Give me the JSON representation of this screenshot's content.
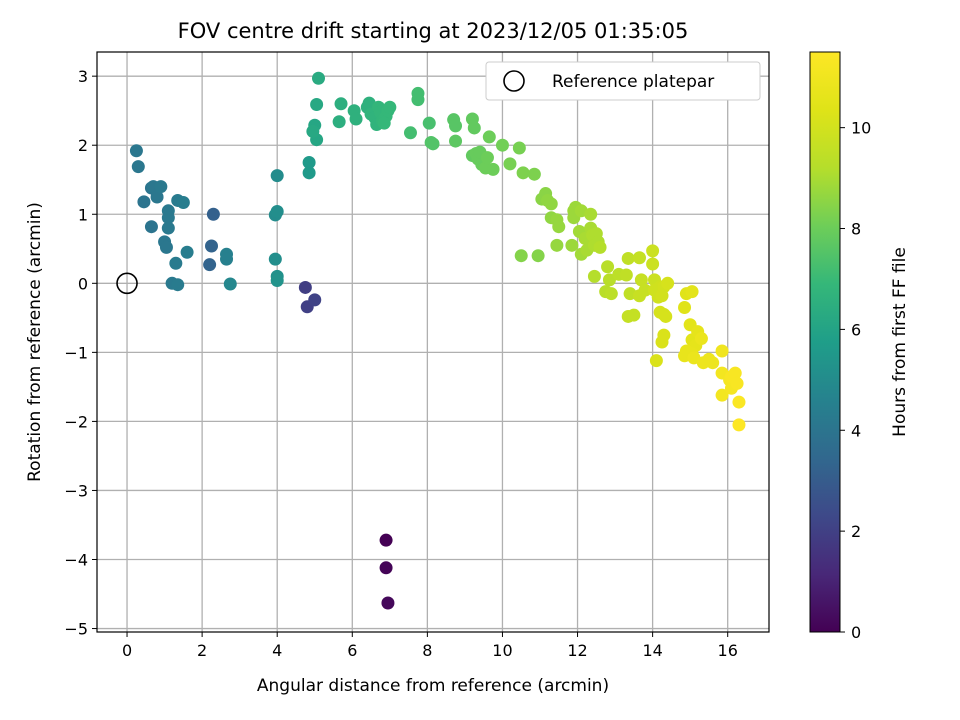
{
  "chart_data": {
    "type": "scatter",
    "title": "FOV centre drift starting at 2023/12/05 01:35:05",
    "xlabel": "Angular distance from reference (arcmin)",
    "ylabel": "Rotation from reference (arcmin)",
    "xlim": [
      -0.8,
      17.1
    ],
    "ylim": [
      -5.05,
      3.35
    ],
    "xticks": [
      0,
      2,
      4,
      6,
      8,
      10,
      12,
      14,
      16
    ],
    "yticks": [
      -5,
      -4,
      -3,
      -2,
      -1,
      0,
      1,
      2,
      3
    ],
    "grid": true,
    "legend": {
      "position": "top-right",
      "entries": [
        "Reference platepar"
      ]
    },
    "colorbar": {
      "label": "Hours from first FF file",
      "range": [
        0,
        11.5
      ],
      "ticks": [
        0,
        2,
        4,
        6,
        8,
        10
      ],
      "colormap": "viridis"
    },
    "reference_point": {
      "x": 0,
      "y": 0
    },
    "points": [
      {
        "x": 6.9,
        "y": -3.72,
        "c": 0.0
      },
      {
        "x": 6.9,
        "y": -4.12,
        "c": 0.1
      },
      {
        "x": 6.95,
        "y": -4.63,
        "c": 0.2
      },
      {
        "x": 4.75,
        "y": -0.06,
        "c": 1.9
      },
      {
        "x": 4.8,
        "y": -0.34,
        "c": 2.0
      },
      {
        "x": 5.0,
        "y": -0.24,
        "c": 2.1
      },
      {
        "x": 2.3,
        "y": 1.0,
        "c": 3.2
      },
      {
        "x": 2.2,
        "y": 0.27,
        "c": 3.3
      },
      {
        "x": 2.25,
        "y": 0.54,
        "c": 3.3
      },
      {
        "x": 0.25,
        "y": 1.92,
        "c": 4.1
      },
      {
        "x": 0.3,
        "y": 1.69,
        "c": 4.1
      },
      {
        "x": 0.45,
        "y": 1.18,
        "c": 4.0
      },
      {
        "x": 0.65,
        "y": 1.38,
        "c": 4.0
      },
      {
        "x": 0.7,
        "y": 1.4,
        "c": 4.1
      },
      {
        "x": 0.8,
        "y": 1.25,
        "c": 4.1
      },
      {
        "x": 0.9,
        "y": 1.4,
        "c": 4.2
      },
      {
        "x": 0.65,
        "y": 0.82,
        "c": 4.0
      },
      {
        "x": 1.0,
        "y": 0.6,
        "c": 4.1
      },
      {
        "x": 1.05,
        "y": 0.52,
        "c": 4.1
      },
      {
        "x": 1.1,
        "y": 1.05,
        "c": 4.2
      },
      {
        "x": 1.1,
        "y": 0.95,
        "c": 4.2
      },
      {
        "x": 1.1,
        "y": 0.8,
        "c": 4.2
      },
      {
        "x": 1.2,
        "y": 0.0,
        "c": 4.2
      },
      {
        "x": 1.35,
        "y": -0.02,
        "c": 4.3
      },
      {
        "x": 1.3,
        "y": 0.29,
        "c": 4.3
      },
      {
        "x": 1.35,
        "y": 1.2,
        "c": 4.3
      },
      {
        "x": 1.5,
        "y": 1.17,
        "c": 4.4
      },
      {
        "x": 1.6,
        "y": 0.45,
        "c": 4.4
      },
      {
        "x": 2.65,
        "y": 0.42,
        "c": 4.5
      },
      {
        "x": 2.65,
        "y": 0.35,
        "c": 4.5
      },
      {
        "x": 2.75,
        "y": -0.01,
        "c": 4.8
      },
      {
        "x": 4.0,
        "y": 1.56,
        "c": 5.0
      },
      {
        "x": 3.95,
        "y": 0.99,
        "c": 5.0
      },
      {
        "x": 4.0,
        "y": 1.04,
        "c": 5.1
      },
      {
        "x": 3.95,
        "y": 0.35,
        "c": 5.1
      },
      {
        "x": 4.0,
        "y": 0.1,
        "c": 5.2
      },
      {
        "x": 4.0,
        "y": 0.04,
        "c": 5.3
      },
      {
        "x": 4.85,
        "y": 1.6,
        "c": 5.6
      },
      {
        "x": 4.85,
        "y": 1.75,
        "c": 5.6
      },
      {
        "x": 5.0,
        "y": 2.29,
        "c": 6.1
      },
      {
        "x": 5.05,
        "y": 2.08,
        "c": 6.1
      },
      {
        "x": 5.05,
        "y": 2.59,
        "c": 6.2
      },
      {
        "x": 5.1,
        "y": 2.97,
        "c": 6.3
      },
      {
        "x": 4.95,
        "y": 2.2,
        "c": 6.2
      },
      {
        "x": 5.65,
        "y": 2.34,
        "c": 6.5
      },
      {
        "x": 5.7,
        "y": 2.6,
        "c": 6.5
      },
      {
        "x": 6.05,
        "y": 2.5,
        "c": 6.6
      },
      {
        "x": 6.1,
        "y": 2.38,
        "c": 6.6
      },
      {
        "x": 6.4,
        "y": 2.55,
        "c": 6.6
      },
      {
        "x": 6.45,
        "y": 2.61,
        "c": 6.6
      },
      {
        "x": 6.5,
        "y": 2.45,
        "c": 6.7
      },
      {
        "x": 6.6,
        "y": 2.4,
        "c": 6.7
      },
      {
        "x": 6.65,
        "y": 2.3,
        "c": 6.7
      },
      {
        "x": 6.7,
        "y": 2.55,
        "c": 6.8
      },
      {
        "x": 6.75,
        "y": 2.48,
        "c": 6.8
      },
      {
        "x": 6.8,
        "y": 2.35,
        "c": 6.8
      },
      {
        "x": 6.9,
        "y": 2.42,
        "c": 6.9
      },
      {
        "x": 6.95,
        "y": 2.5,
        "c": 6.9
      },
      {
        "x": 7.0,
        "y": 2.55,
        "c": 6.9
      },
      {
        "x": 6.85,
        "y": 2.32,
        "c": 6.9
      },
      {
        "x": 7.55,
        "y": 2.18,
        "c": 7.2
      },
      {
        "x": 7.75,
        "y": 2.75,
        "c": 7.2
      },
      {
        "x": 7.75,
        "y": 2.66,
        "c": 7.2
      },
      {
        "x": 8.05,
        "y": 2.32,
        "c": 7.3
      },
      {
        "x": 8.1,
        "y": 2.04,
        "c": 7.5
      },
      {
        "x": 8.15,
        "y": 2.02,
        "c": 7.5
      },
      {
        "x": 8.7,
        "y": 2.37,
        "c": 7.6
      },
      {
        "x": 8.75,
        "y": 2.28,
        "c": 7.6
      },
      {
        "x": 8.75,
        "y": 2.06,
        "c": 7.7
      },
      {
        "x": 9.2,
        "y": 2.38,
        "c": 7.8
      },
      {
        "x": 9.25,
        "y": 2.25,
        "c": 7.8
      },
      {
        "x": 9.2,
        "y": 1.85,
        "c": 7.8
      },
      {
        "x": 9.3,
        "y": 1.88,
        "c": 7.9
      },
      {
        "x": 9.35,
        "y": 1.8,
        "c": 7.9
      },
      {
        "x": 9.4,
        "y": 1.9,
        "c": 7.9
      },
      {
        "x": 9.45,
        "y": 1.72,
        "c": 7.9
      },
      {
        "x": 9.55,
        "y": 1.67,
        "c": 8.0
      },
      {
        "x": 9.6,
        "y": 1.82,
        "c": 8.0
      },
      {
        "x": 9.65,
        "y": 2.12,
        "c": 8.0
      },
      {
        "x": 9.75,
        "y": 1.65,
        "c": 8.0
      },
      {
        "x": 10.0,
        "y": 2.0,
        "c": 8.1
      },
      {
        "x": 10.2,
        "y": 1.73,
        "c": 8.2
      },
      {
        "x": 10.45,
        "y": 1.96,
        "c": 8.2
      },
      {
        "x": 10.55,
        "y": 1.6,
        "c": 8.3
      },
      {
        "x": 10.85,
        "y": 1.58,
        "c": 8.3
      },
      {
        "x": 10.5,
        "y": 0.4,
        "c": 8.4
      },
      {
        "x": 10.95,
        "y": 0.4,
        "c": 8.4
      },
      {
        "x": 11.05,
        "y": 1.22,
        "c": 8.5
      },
      {
        "x": 11.15,
        "y": 1.3,
        "c": 8.5
      },
      {
        "x": 11.2,
        "y": 1.2,
        "c": 8.6
      },
      {
        "x": 11.3,
        "y": 1.15,
        "c": 8.6
      },
      {
        "x": 11.3,
        "y": 0.95,
        "c": 8.6
      },
      {
        "x": 11.45,
        "y": 0.92,
        "c": 8.7
      },
      {
        "x": 11.5,
        "y": 0.82,
        "c": 8.7
      },
      {
        "x": 11.45,
        "y": 0.55,
        "c": 8.7
      },
      {
        "x": 11.9,
        "y": 1.05,
        "c": 8.8
      },
      {
        "x": 11.95,
        "y": 1.1,
        "c": 8.8
      },
      {
        "x": 11.9,
        "y": 0.95,
        "c": 8.8
      },
      {
        "x": 11.85,
        "y": 0.55,
        "c": 8.8
      },
      {
        "x": 12.05,
        "y": 0.75,
        "c": 8.9
      },
      {
        "x": 12.1,
        "y": 1.05,
        "c": 8.9
      },
      {
        "x": 12.1,
        "y": 0.42,
        "c": 8.9
      },
      {
        "x": 12.2,
        "y": 0.65,
        "c": 9.0
      },
      {
        "x": 12.25,
        "y": 0.48,
        "c": 9.0
      },
      {
        "x": 12.35,
        "y": 1.0,
        "c": 9.0
      },
      {
        "x": 12.35,
        "y": 0.8,
        "c": 9.0
      },
      {
        "x": 12.4,
        "y": 0.7,
        "c": 9.1
      },
      {
        "x": 12.45,
        "y": 0.55,
        "c": 9.1
      },
      {
        "x": 12.5,
        "y": 0.72,
        "c": 9.1
      },
      {
        "x": 12.55,
        "y": 0.6,
        "c": 9.1
      },
      {
        "x": 12.6,
        "y": 0.52,
        "c": 9.2
      },
      {
        "x": 12.45,
        "y": 0.1,
        "c": 9.2
      },
      {
        "x": 12.75,
        "y": -0.12,
        "c": 9.3
      },
      {
        "x": 12.8,
        "y": 0.24,
        "c": 9.3
      },
      {
        "x": 12.85,
        "y": 0.05,
        "c": 9.3
      },
      {
        "x": 12.9,
        "y": -0.15,
        "c": 9.4
      },
      {
        "x": 13.1,
        "y": 0.13,
        "c": 9.4
      },
      {
        "x": 13.3,
        "y": 0.12,
        "c": 9.5
      },
      {
        "x": 13.35,
        "y": 0.36,
        "c": 9.5
      },
      {
        "x": 13.4,
        "y": -0.15,
        "c": 9.5
      },
      {
        "x": 13.35,
        "y": -0.48,
        "c": 9.6
      },
      {
        "x": 13.5,
        "y": -0.46,
        "c": 9.6
      },
      {
        "x": 13.65,
        "y": 0.37,
        "c": 9.6
      },
      {
        "x": 13.65,
        "y": -0.18,
        "c": 9.7
      },
      {
        "x": 13.7,
        "y": 0.05,
        "c": 9.7
      },
      {
        "x": 13.8,
        "y": -0.1,
        "c": 9.7
      },
      {
        "x": 14.0,
        "y": 0.47,
        "c": 9.8
      },
      {
        "x": 14.0,
        "y": 0.28,
        "c": 9.8
      },
      {
        "x": 14.05,
        "y": 0.05,
        "c": 9.8
      },
      {
        "x": 14.05,
        "y": -0.1,
        "c": 9.9
      },
      {
        "x": 14.15,
        "y": -0.2,
        "c": 9.9
      },
      {
        "x": 14.2,
        "y": -0.05,
        "c": 9.9
      },
      {
        "x": 14.25,
        "y": -0.18,
        "c": 10.0
      },
      {
        "x": 14.3,
        "y": -0.05,
        "c": 10.0
      },
      {
        "x": 14.3,
        "y": -0.45,
        "c": 10.0
      },
      {
        "x": 14.35,
        "y": -0.48,
        "c": 10.1
      },
      {
        "x": 14.4,
        "y": 0.0,
        "c": 10.1
      },
      {
        "x": 14.2,
        "y": -0.42,
        "c": 10.1
      },
      {
        "x": 14.3,
        "y": -0.75,
        "c": 10.2
      },
      {
        "x": 14.25,
        "y": -0.85,
        "c": 10.2
      },
      {
        "x": 14.1,
        "y": -1.12,
        "c": 10.2
      },
      {
        "x": 14.85,
        "y": -0.35,
        "c": 10.4
      },
      {
        "x": 14.9,
        "y": -0.15,
        "c": 10.4
      },
      {
        "x": 15.05,
        "y": -0.12,
        "c": 10.5
      },
      {
        "x": 15.0,
        "y": -0.6,
        "c": 10.5
      },
      {
        "x": 15.05,
        "y": -0.82,
        "c": 10.5
      },
      {
        "x": 15.15,
        "y": -0.9,
        "c": 10.6
      },
      {
        "x": 15.2,
        "y": -0.7,
        "c": 10.6
      },
      {
        "x": 14.9,
        "y": -0.98,
        "c": 10.7
      },
      {
        "x": 14.85,
        "y": -1.05,
        "c": 10.7
      },
      {
        "x": 15.05,
        "y": -1.02,
        "c": 10.7
      },
      {
        "x": 15.1,
        "y": -1.08,
        "c": 10.8
      },
      {
        "x": 15.3,
        "y": -0.8,
        "c": 10.8
      },
      {
        "x": 15.35,
        "y": -1.15,
        "c": 10.9
      },
      {
        "x": 15.5,
        "y": -1.1,
        "c": 10.9
      },
      {
        "x": 15.6,
        "y": -1.15,
        "c": 10.9
      },
      {
        "x": 15.85,
        "y": -0.98,
        "c": 11.0
      },
      {
        "x": 15.85,
        "y": -1.3,
        "c": 11.1
      },
      {
        "x": 15.85,
        "y": -1.62,
        "c": 11.1
      },
      {
        "x": 16.05,
        "y": -1.4,
        "c": 11.2
      },
      {
        "x": 16.1,
        "y": -1.52,
        "c": 11.2
      },
      {
        "x": 16.1,
        "y": -1.35,
        "c": 11.3
      },
      {
        "x": 16.2,
        "y": -1.3,
        "c": 11.3
      },
      {
        "x": 16.25,
        "y": -1.45,
        "c": 11.3
      },
      {
        "x": 16.3,
        "y": -1.72,
        "c": 11.4
      },
      {
        "x": 16.3,
        "y": -2.05,
        "c": 11.5
      }
    ]
  }
}
